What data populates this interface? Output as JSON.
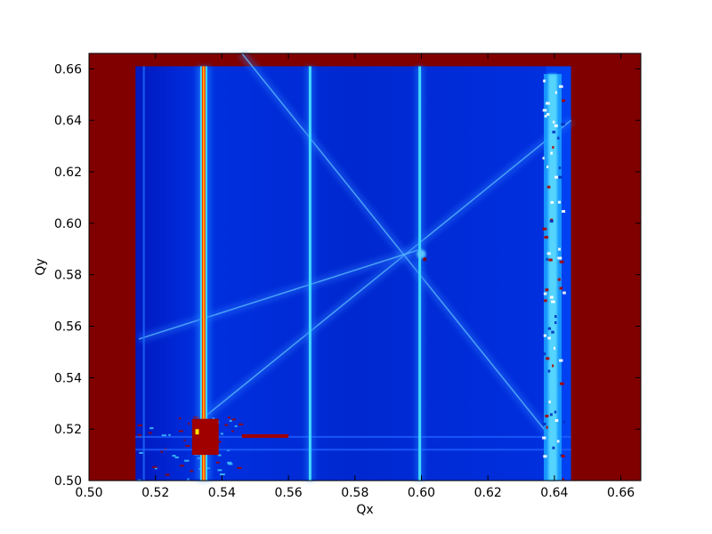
{
  "chart_data": {
    "type": "heatmap",
    "title": "",
    "xlabel": "Qx",
    "ylabel": "Qy",
    "xlim": [
      0.5,
      0.666
    ],
    "ylim": [
      0.5,
      0.666
    ],
    "xticks": [
      "0.50",
      "0.52",
      "0.54",
      "0.56",
      "0.58",
      "0.60",
      "0.62",
      "0.64",
      "0.66"
    ],
    "yticks": [
      "0.50",
      "0.52",
      "0.54",
      "0.56",
      "0.58",
      "0.60",
      "0.62",
      "0.64",
      "0.66"
    ],
    "colormap": "jet",
    "colors": {
      "background_region": "#800000",
      "low": "#00008f",
      "mid_low": "#0040e0",
      "mid": "#40c8ff",
      "high": "#ff2000"
    },
    "data_region": {
      "x": [
        0.514,
        0.645
      ],
      "y": [
        0.5,
        0.661
      ]
    },
    "vertical_resonances": [
      {
        "x": 0.5345,
        "intensity": "high"
      },
      {
        "x": 0.5665,
        "intensity": "mid"
      },
      {
        "x": 0.5995,
        "intensity": "mid"
      },
      {
        "x": 0.6395,
        "intensity": "mid"
      },
      {
        "x": 0.5165,
        "intensity": "low"
      }
    ],
    "diagonal_resonances": [
      {
        "from": [
          0.535,
          0.525
        ],
        "to": [
          0.645,
          0.64
        ]
      },
      {
        "from": [
          0.546,
          0.666
        ],
        "to": [
          0.64,
          0.515
        ]
      },
      {
        "from": [
          0.515,
          0.555
        ],
        "to": [
          0.6,
          0.59
        ]
      }
    ],
    "horizontal_resonances": [
      {
        "y": 0.517
      },
      {
        "y": 0.512
      }
    ]
  }
}
